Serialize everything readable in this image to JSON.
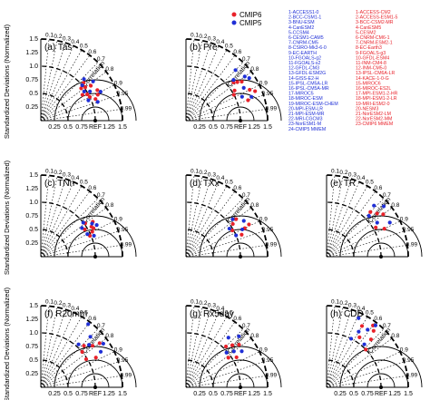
{
  "chart_data": {
    "type": "scatter",
    "subtype": "taylor-diagram",
    "ylabel": "Standardized Deviations (Normalized)",
    "correlation_label": "Correlation",
    "correlation_ticks": [
      "0.1",
      "0.2",
      "0.3",
      "0.4",
      "0.5",
      "0.6",
      "0.7",
      "0.8",
      "0.9",
      "0.95",
      "0.99"
    ],
    "x_ticks": [
      "0",
      "0.25",
      "0.5",
      "0.75",
      "REF",
      "1.25",
      "1.5"
    ],
    "y_ticks": [
      "0.25",
      "0.5",
      "0.75",
      "1.0",
      "1.25",
      "1.5"
    ],
    "rlim": [
      0,
      1.5
    ],
    "legend": {
      "placement": "top-right of panel b",
      "entries": [
        {
          "name": "CMIP6",
          "color": "#e8222a",
          "marker": "circle"
        },
        {
          "name": "CMIP5",
          "color": "#1f2fd6",
          "marker": "circle"
        }
      ]
    },
    "model_list": {
      "cmip5": [
        "1-ACCESS1-0",
        "2-BCC-CSM1-1",
        "3-BNU-ESM",
        "4-CanESM2",
        "5-CCSM4",
        "6-CESM1-CAM5",
        "7-CNRM-CM5",
        "8-CSIRO-Mk3-6-0",
        "9-EC-EARTH",
        "10-FGOALS-g2",
        "11-FGOALS-s2",
        "12-GFDL-CM3",
        "13-GFDL-ESM2G",
        "14-GISS-E2-H",
        "15-IPSL-CM5A-LR",
        "16-IPSL-CM5A-MR",
        "17-MIROC5",
        "18-MIROC-ESM",
        "19-MIROC-ESM-CHEM",
        "20-MPI-ESM-LR",
        "21-MPI-ESM-MR",
        "22-MRI-CGCM3",
        "23-NorESM1-M",
        "24-CMIP5 MMEM"
      ],
      "cmip6": [
        "1-ACCESS-CM2",
        "2-ACCESS-ESM1-5",
        "3-BCC-CSM2-MR",
        "4-CanESM5",
        "5-CESM2",
        "6-CNRM-CM6-1",
        "7-CNRM-ESM2-1",
        "8-EC-Earth3",
        "9-FGOALS-g3",
        "10-GFDL-ESM4",
        "11-INM-CM4-8",
        "12-INM-CM5-0",
        "13-IPSL-CM6A-LR",
        "14-KACE-1-0-G",
        "15-MIROC6",
        "16-MIROC-ES2L",
        "17-MPI-ESM1-2-HR",
        "18-MPI-ESM1-2-LR",
        "19-MRI-ESM2-0",
        "20-NESM3",
        "21-NorESM2-LM",
        "22-NorESM2-MM",
        "23-CMIP6 MMEM"
      ]
    },
    "panels": [
      {
        "label": "(a) Tas",
        "show_ylabel": true,
        "show_xticks": true,
        "series": [
          {
            "name": "CMIP6",
            "points": [
              [
                0.75,
                1.05
              ],
              [
                0.82,
                1.12
              ],
              [
                0.9,
                1.0
              ],
              [
                0.78,
                0.95
              ],
              [
                0.88,
                1.18
              ],
              [
                0.85,
                0.9
              ],
              [
                0.93,
                1.08
              ],
              [
                0.8,
                1.02
              ],
              [
                0.87,
                0.98
              ],
              [
                0.91,
                1.15
              ]
            ]
          },
          {
            "name": "CMIP5",
            "points": [
              [
                0.72,
                1.1
              ],
              [
                0.8,
                1.2
              ],
              [
                0.86,
                1.05
              ],
              [
                0.92,
                0.95
              ],
              [
                0.83,
                0.96
              ],
              [
                0.9,
                1.22
              ],
              [
                0.76,
                1.0
              ],
              [
                0.95,
                1.1
              ]
            ]
          }
        ]
      },
      {
        "label": "(b) Pre",
        "show_ylabel": false,
        "show_xticks": true,
        "series": [
          {
            "name": "CMIP6",
            "points": [
              [
                0.78,
                1.12
              ],
              [
                0.9,
                1.3
              ],
              [
                0.85,
                1.05
              ],
              [
                0.95,
                1.2
              ],
              [
                0.82,
                1.25
              ],
              [
                0.88,
                1.0
              ],
              [
                0.92,
                1.38
              ],
              [
                0.8,
                1.18
              ]
            ]
          },
          {
            "name": "CMIP5",
            "points": [
              [
                0.7,
                1.3
              ],
              [
                0.83,
                1.4
              ],
              [
                0.76,
                1.15
              ],
              [
                0.92,
                1.12
              ],
              [
                0.87,
                1.22
              ],
              [
                0.8,
                1.35
              ],
              [
                0.94,
                1.28
              ]
            ]
          }
        ]
      },
      {
        "label": "(c) TNn",
        "show_ylabel": true,
        "show_xticks": false,
        "series": [
          {
            "name": "CMIP6",
            "points": [
              [
                0.8,
                1.02
              ],
              [
                0.88,
                1.1
              ],
              [
                0.85,
                0.95
              ],
              [
                0.9,
                1.05
              ],
              [
                0.83,
                1.15
              ],
              [
                0.92,
                0.98
              ],
              [
                0.86,
                1.08
              ]
            ]
          },
          {
            "name": "CMIP5",
            "points": [
              [
                0.78,
                1.0
              ],
              [
                0.84,
                1.12
              ],
              [
                0.9,
                0.95
              ],
              [
                0.87,
                1.18
              ],
              [
                0.82,
                0.92
              ],
              [
                0.93,
                1.05
              ]
            ]
          }
        ]
      },
      {
        "label": "(d) TXx",
        "show_ylabel": false,
        "show_xticks": false,
        "series": [
          {
            "name": "CMIP6",
            "points": [
              [
                0.82,
                1.05
              ],
              [
                0.9,
                1.2
              ],
              [
                0.87,
                0.98
              ],
              [
                0.93,
                1.1
              ],
              [
                0.8,
                1.15
              ],
              [
                0.89,
                1.3
              ]
            ]
          },
          {
            "name": "CMIP5",
            "points": [
              [
                0.78,
                1.1
              ],
              [
                0.85,
                1.25
              ],
              [
                0.92,
                1.0
              ],
              [
                0.84,
                0.95
              ],
              [
                0.9,
                1.15
              ]
            ]
          }
        ]
      },
      {
        "label": "(e) TR",
        "show_ylabel": false,
        "show_xticks": false,
        "series": [
          {
            "name": "CMIP6",
            "points": [
              [
                0.7,
                1.15
              ],
              [
                0.8,
                1.3
              ],
              [
                0.86,
                1.05
              ],
              [
                0.76,
                1.22
              ],
              [
                0.9,
                1.18
              ]
            ]
          },
          {
            "name": "CMIP5",
            "points": [
              [
                0.68,
                1.28
              ],
              [
                0.75,
                1.4
              ],
              [
                0.83,
                1.12
              ],
              [
                0.88,
                1.32
              ],
              [
                0.72,
                1.08
              ]
            ]
          }
        ]
      },
      {
        "label": "(f) R20mm",
        "show_ylabel": true,
        "show_xticks": true,
        "series": [
          {
            "name": "CMIP6",
            "points": [
              [
                0.72,
                1.1
              ],
              [
                0.8,
                1.35
              ],
              [
                0.85,
                0.98
              ],
              [
                0.78,
                1.22
              ],
              [
                0.88,
                1.15
              ],
              [
                0.76,
                1.0
              ]
            ]
          },
          {
            "name": "CMIP5",
            "points": [
              [
                0.6,
                1.45
              ],
              [
                0.7,
                1.3
              ],
              [
                0.82,
                1.4
              ],
              [
                0.75,
                1.18
              ],
              [
                0.66,
                1.05
              ],
              [
                0.86,
                1.28
              ]
            ]
          }
        ]
      },
      {
        "label": "(g) Rx5day",
        "show_ylabel": false,
        "show_xticks": true,
        "series": [
          {
            "name": "CMIP6",
            "points": [
              [
                0.7,
                1.05
              ],
              [
                0.78,
                1.25
              ],
              [
                0.82,
                0.95
              ],
              [
                0.74,
                1.15
              ],
              [
                0.86,
                1.08
              ]
            ]
          },
          {
            "name": "CMIP5",
            "points": [
              [
                0.65,
                1.2
              ],
              [
                0.72,
                1.35
              ],
              [
                0.8,
                1.1
              ],
              [
                0.76,
                0.98
              ],
              [
                0.84,
                1.22
              ]
            ]
          }
        ]
      },
      {
        "label": "(h) CDD",
        "show_ylabel": false,
        "show_xticks": true,
        "series": [
          {
            "name": "CMIP6",
            "points": [
              [
                0.5,
                1.3
              ],
              [
                0.6,
                1.42
              ],
              [
                0.68,
                1.2
              ],
              [
                0.55,
                1.1
              ],
              [
                0.72,
                1.0
              ],
              [
                0.64,
                1.35
              ]
            ]
          },
          {
            "name": "CMIP5",
            "points": [
              [
                0.42,
                1.4
              ],
              [
                0.5,
                1.18
              ],
              [
                0.58,
                1.3
              ],
              [
                0.66,
                1.05
              ],
              [
                0.45,
                1.0
              ],
              [
                0.62,
                1.45
              ]
            ]
          }
        ]
      }
    ]
  }
}
